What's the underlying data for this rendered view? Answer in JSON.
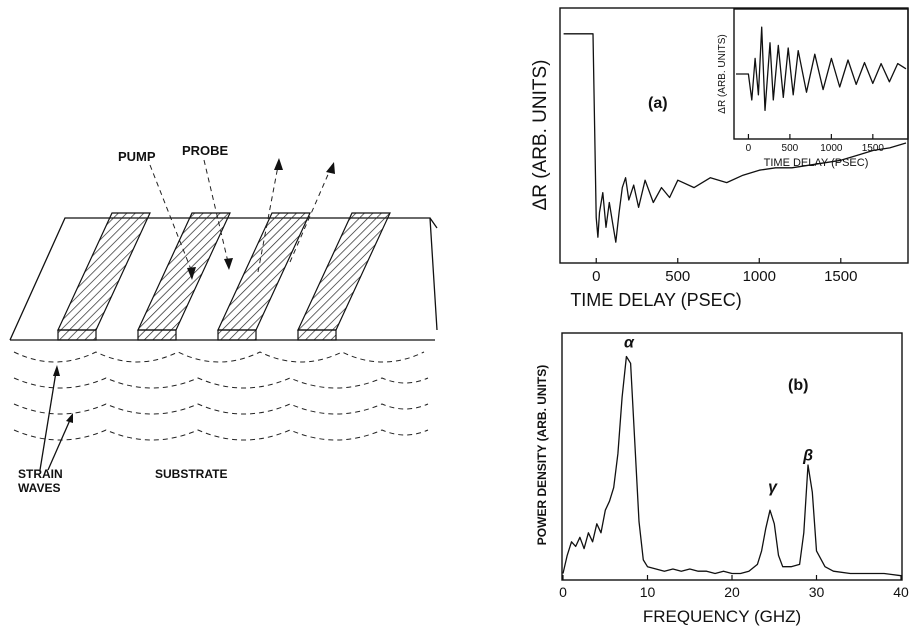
{
  "diagram": {
    "labels": {
      "pump": "PUMP",
      "probe": "PROBE",
      "strain_waves_line1": "STRAIN",
      "strain_waves_line2": "WAVES",
      "substrate": "SUBSTRATE"
    }
  },
  "chart_data": [
    {
      "type": "line",
      "panel_label": "(a)",
      "xlabel": "TIME DELAY (PSEC)",
      "ylabel": "ΔR (ARB. UNITS)",
      "xticks": [
        0,
        500,
        1000,
        1500
      ],
      "xlim": [
        -210,
        1900
      ],
      "ylim": [
        0,
        1
      ],
      "series": [
        {
          "x": [
            -200,
            -20,
            -10,
            0,
            10,
            20,
            40,
            60,
            80,
            100,
            120,
            140,
            160,
            180,
            200,
            230,
            260,
            300,
            350,
            400,
            450,
            500,
            600,
            700,
            800,
            900,
            1000,
            1100,
            1200,
            1300,
            1400,
            1500,
            1600,
            1700,
            1800,
            1900
          ],
          "y": [
            0.92,
            0.92,
            0.55,
            0.18,
            0.1,
            0.2,
            0.28,
            0.14,
            0.24,
            0.16,
            0.08,
            0.2,
            0.3,
            0.34,
            0.25,
            0.31,
            0.22,
            0.33,
            0.24,
            0.3,
            0.26,
            0.33,
            0.3,
            0.34,
            0.32,
            0.35,
            0.37,
            0.38,
            0.38,
            0.39,
            0.4,
            0.41,
            0.43,
            0.45,
            0.46,
            0.48
          ]
        }
      ],
      "inset": {
        "xlabel": "TIME DELAY (PSEC)",
        "ylabel": "ΔR (ARB. UNITS)",
        "xticks": [
          0,
          500,
          1000,
          1500
        ],
        "xlim": [
          -150,
          1900
        ],
        "ylim": [
          -1,
          1
        ],
        "series": [
          {
            "x": [
              -150,
              0,
              40,
              80,
              120,
              160,
              200,
              260,
              300,
              360,
              420,
              480,
              540,
              600,
              700,
              800,
              900,
              1000,
              1100,
              1200,
              1300,
              1400,
              1500,
              1600,
              1700,
              1800,
              1900
            ],
            "y": [
              0,
              0,
              -0.5,
              0.3,
              -0.4,
              0.9,
              -0.7,
              0.6,
              -0.5,
              0.55,
              -0.45,
              0.5,
              -0.4,
              0.45,
              -0.35,
              0.38,
              -0.3,
              0.3,
              -0.25,
              0.27,
              -0.2,
              0.22,
              -0.18,
              0.2,
              -0.15,
              0.2,
              0.1
            ]
          }
        ]
      }
    },
    {
      "type": "line",
      "panel_label": "(b)",
      "xlabel": "FREQUENCY (GHZ)",
      "ylabel": "POWER DENSITY (ARB. UNITS)",
      "xticks": [
        0,
        10,
        20,
        30,
        40
      ],
      "xlim": [
        0,
        40
      ],
      "ylim": [
        0,
        1
      ],
      "annotations": [
        {
          "text": "α",
          "x": 7.8,
          "y": 1.02
        },
        {
          "text": "γ",
          "x": 24.8,
          "y": 0.38
        },
        {
          "text": "β",
          "x": 29.0,
          "y": 0.52
        }
      ],
      "series": [
        {
          "x": [
            0,
            0.5,
            1,
            1.5,
            2,
            2.5,
            3,
            3.5,
            4,
            4.5,
            5,
            5.5,
            6,
            6.5,
            7,
            7.5,
            8,
            8.5,
            9,
            9.5,
            10,
            11,
            12,
            13,
            14,
            15,
            16,
            17,
            18,
            19,
            20,
            21,
            22,
            23,
            23.5,
            24,
            24.5,
            25,
            25.5,
            26,
            27,
            28,
            28.5,
            29,
            29.5,
            30,
            31,
            32,
            34,
            36,
            38,
            40
          ],
          "y": [
            0.02,
            0.1,
            0.16,
            0.14,
            0.18,
            0.13,
            0.2,
            0.16,
            0.24,
            0.2,
            0.3,
            0.34,
            0.4,
            0.55,
            0.8,
            0.98,
            0.95,
            0.6,
            0.25,
            0.08,
            0.05,
            0.04,
            0.03,
            0.04,
            0.03,
            0.04,
            0.03,
            0.03,
            0.02,
            0.03,
            0.02,
            0.02,
            0.03,
            0.06,
            0.12,
            0.22,
            0.3,
            0.24,
            0.1,
            0.05,
            0.05,
            0.06,
            0.2,
            0.5,
            0.38,
            0.12,
            0.05,
            0.03,
            0.02,
            0.02,
            0.02,
            0.01
          ]
        }
      ]
    }
  ]
}
